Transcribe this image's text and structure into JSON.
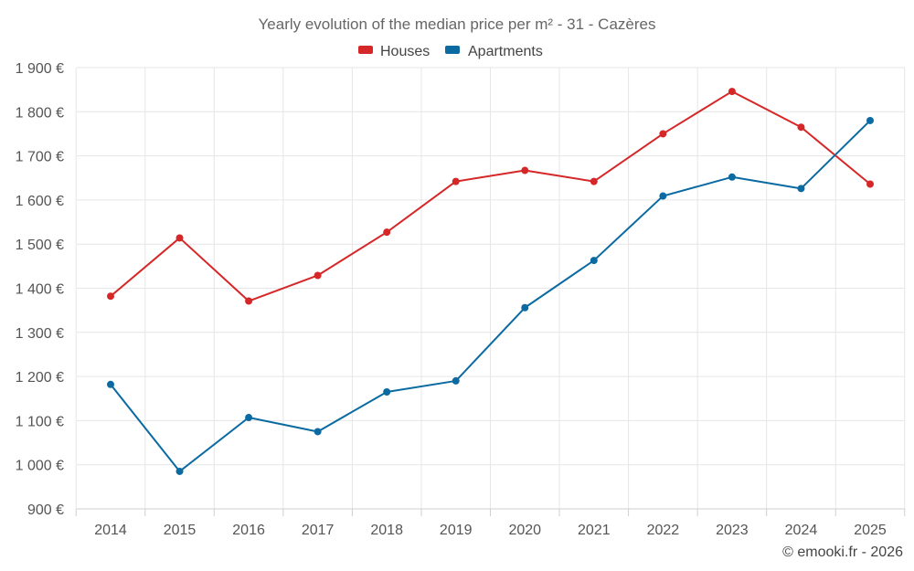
{
  "chart_data": {
    "type": "line",
    "title": "Yearly evolution of the median price per m² - 31 - Cazères",
    "categories": [
      "2014",
      "2015",
      "2016",
      "2017",
      "2018",
      "2019",
      "2020",
      "2021",
      "2022",
      "2023",
      "2024",
      "2025"
    ],
    "series": [
      {
        "name": "Houses",
        "color": "#d62728",
        "values": [
          1382,
          1514,
          1371,
          1429,
          1527,
          1642,
          1667,
          1642,
          1750,
          1846,
          1765,
          1636
        ]
      },
      {
        "name": "Apartments",
        "color": "#0a6aa1",
        "values": [
          1182,
          985,
          1107,
          1075,
          1165,
          1190,
          1356,
          1463,
          1609,
          1652,
          1626,
          1780
        ]
      }
    ],
    "y_ticks": [
      "900 €",
      "1 000 €",
      "1 100 €",
      "1 200 €",
      "1 300 €",
      "1 400 €",
      "1 500 €",
      "1 600 €",
      "1 700 €",
      "1 800 €",
      "1 900 €"
    ],
    "ylim": [
      900,
      1900
    ],
    "y_step": 100,
    "legend": "top-center",
    "grid": true,
    "credit": "© emooki.fr - 2026"
  }
}
